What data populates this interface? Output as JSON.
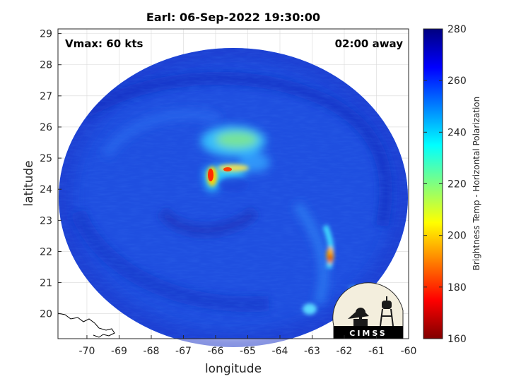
{
  "title": "Earl: 06-Sep-2022 19:30:00",
  "vmax_label": "Vmax: 60 kts",
  "away_label": "02:00 away",
  "xlabel": "longitude",
  "ylabel": "latitude",
  "colorbar_label": "Brightness Temp - Horizontal Polarization",
  "logo_text": "CIMSS",
  "x_ticks": [
    "-70",
    "-69",
    "-68",
    "-67",
    "-66",
    "-65",
    "-64",
    "-63",
    "-62",
    "-61",
    "-60"
  ],
  "y_ticks": [
    "20",
    "21",
    "22",
    "23",
    "24",
    "25",
    "26",
    "27",
    "28",
    "29"
  ],
  "colorbar_ticks": [
    "160",
    "180",
    "200",
    "220",
    "240",
    "260",
    "280"
  ],
  "map": {
    "lon_range": [
      -70.9,
      -60
    ],
    "lat_range": [
      19.2,
      29.15
    ],
    "colorbar_range": [
      160,
      280
    ],
    "colormap": "jet",
    "storm_center": {
      "lon": -65.3,
      "lat": 24.1
    },
    "warm_core": {
      "lon": -65.8,
      "lat": 24.4,
      "value": 175
    },
    "rainband_hotspot": {
      "lon": -62.4,
      "lat": 21.7,
      "value": 180
    },
    "background_value": 265
  }
}
